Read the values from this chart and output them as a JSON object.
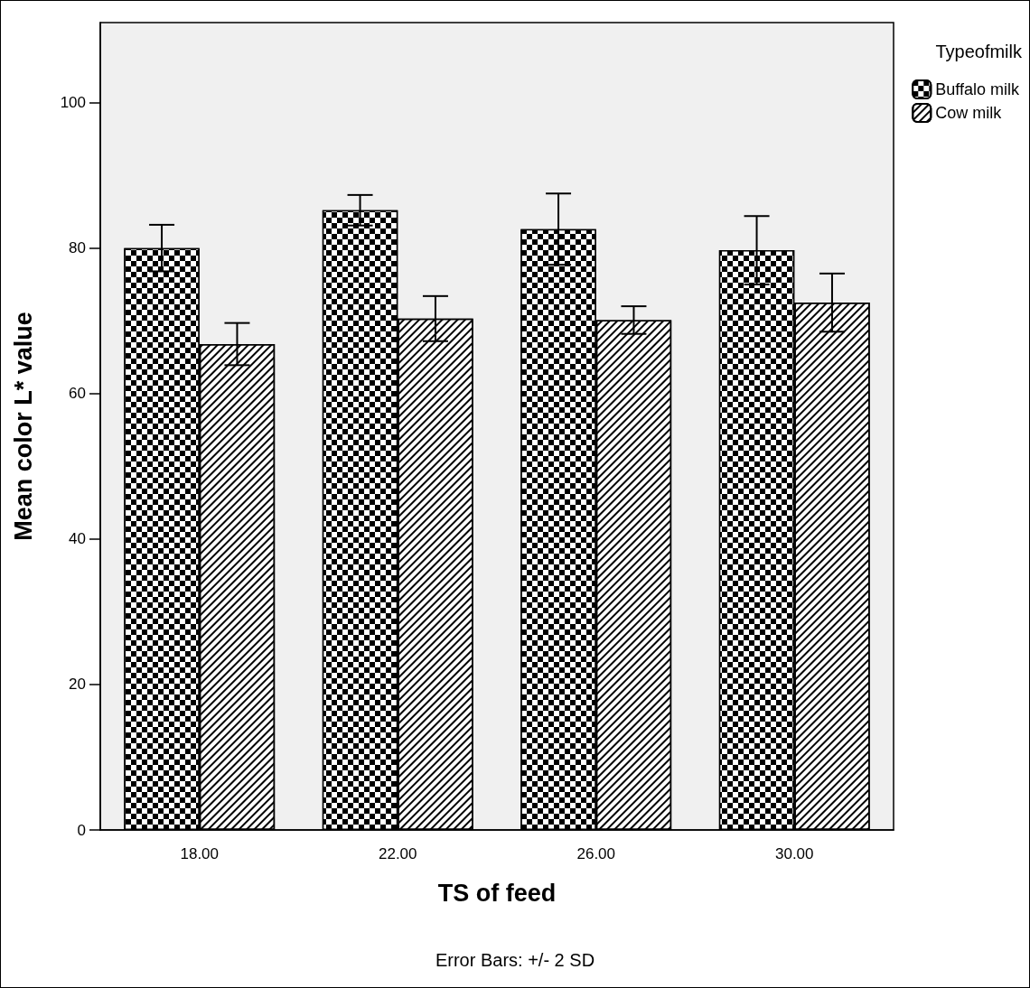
{
  "chart_data": {
    "type": "bar",
    "xlabel": "TS of feed",
    "ylabel": "Mean color L* value",
    "legend_title": "Typeofmilk",
    "annotations": [
      "Error Bars: +/- 2 SD"
    ],
    "categories": [
      "18.00",
      "22.00",
      "26.00",
      "30.00"
    ],
    "series": [
      {
        "name": "Buffalo milk",
        "color": "#000000",
        "values": [
          80.0,
          85.2,
          82.6,
          79.7
        ],
        "errors": [
          3.2,
          2.1,
          4.9,
          4.7
        ]
      },
      {
        "name": "Cow milk",
        "color": "#ffffff",
        "values": [
          66.8,
          70.3,
          70.1,
          72.5
        ],
        "errors": [
          2.9,
          3.1,
          1.9,
          4.0
        ]
      }
    ],
    "ylim": [
      0,
      111
    ],
    "yticks": [
      0,
      20,
      40,
      60,
      80,
      100
    ],
    "grid": false,
    "legend": "top right"
  }
}
